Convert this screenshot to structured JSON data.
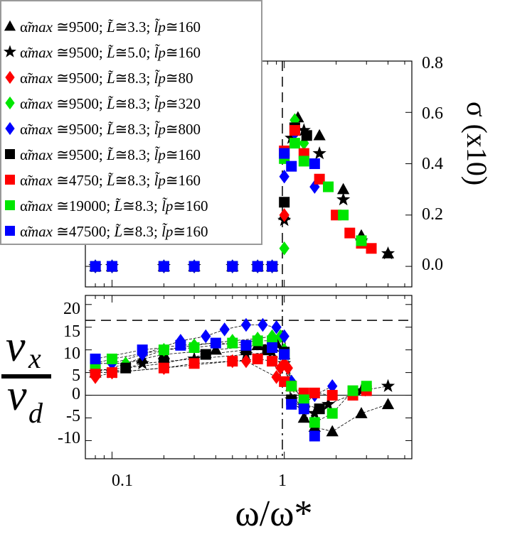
{
  "chart_data": [
    {
      "panel": "top",
      "type": "scatter",
      "xscale": "log",
      "xlim": [
        0.07,
        5.5
      ],
      "ylim": [
        -0.08,
        0.8
      ],
      "ylabel": "σ (x10)",
      "yticks": [
        "0.8",
        "0.6",
        "0.4",
        "0.2",
        "0.0"
      ],
      "ytick_values": [
        0.8,
        0.6,
        0.4,
        0.2,
        0.0
      ],
      "series": [
        {
          "name": "black-triangle",
          "x": [
            0.08,
            0.1,
            0.2,
            0.3,
            0.5,
            0.7,
            0.85,
            1.0,
            1.2,
            1.6,
            2.2,
            2.8,
            4.0
          ],
          "y": [
            0,
            0,
            0,
            0,
            0,
            0,
            0,
            0.2,
            0.58,
            0.51,
            0.3,
            0.12,
            0.05
          ]
        },
        {
          "name": "black-star",
          "x": [
            0.08,
            0.1,
            0.2,
            0.3,
            0.5,
            0.7,
            0.85,
            1.0,
            1.1,
            1.3,
            1.6,
            2.2,
            2.8,
            4.0
          ],
          "y": [
            0,
            0,
            0,
            0,
            0,
            0,
            0,
            0.18,
            0.5,
            0.53,
            0.44,
            0.26,
            0.1,
            0.05
          ]
        },
        {
          "name": "red-diamond",
          "x": [
            0.08,
            0.1,
            0.2,
            0.3,
            0.5,
            0.7,
            0.85,
            1.0,
            1.15,
            1.3
          ],
          "y": [
            0,
            0,
            0,
            0,
            0,
            0,
            0,
            0.2,
            0.52,
            0.44
          ]
        },
        {
          "name": "green-diamond",
          "x": [
            0.08,
            0.1,
            0.2,
            0.3,
            0.5,
            0.7,
            0.85,
            1.0,
            1.15,
            1.3
          ],
          "y": [
            0,
            0,
            0,
            0,
            0,
            0,
            0,
            0.07,
            0.57,
            0.48
          ]
        },
        {
          "name": "blue-diamond",
          "x": [
            0.08,
            0.1,
            0.2,
            0.3,
            0.5,
            0.7,
            0.85,
            1.0,
            1.15,
            1.5
          ],
          "y": [
            0,
            0,
            0,
            0,
            0,
            0,
            0,
            0.35,
            0.52,
            0.31
          ]
        },
        {
          "name": "black-square",
          "x": [
            0.08,
            0.1,
            0.2,
            0.3,
            0.5,
            0.7,
            0.85,
            1.0,
            1.15,
            1.35
          ],
          "y": [
            0,
            0,
            0,
            0,
            0,
            0,
            0,
            0.25,
            0.54,
            0.51
          ]
        },
        {
          "name": "red-square",
          "x": [
            0.08,
            0.1,
            0.2,
            0.3,
            0.5,
            0.7,
            0.85,
            1.0,
            1.15,
            1.3,
            1.6,
            2.0,
            2.4,
            2.8,
            3.2
          ],
          "y": [
            0,
            0,
            0,
            0,
            0,
            0,
            0,
            0.45,
            0.53,
            0.44,
            0.34,
            0.2,
            0.13,
            0.09,
            0.07
          ]
        },
        {
          "name": "green-square",
          "x": [
            0.08,
            0.1,
            0.2,
            0.3,
            0.5,
            0.7,
            0.85,
            1.0,
            1.15,
            1.3,
            1.8,
            2.2,
            2.8
          ],
          "y": [
            0,
            0,
            0,
            0,
            0,
            0,
            0,
            0.42,
            0.48,
            0.41,
            0.31,
            0.2,
            0.1
          ]
        },
        {
          "name": "blue-square",
          "x": [
            0.08,
            0.1,
            0.2,
            0.3,
            0.5,
            0.7,
            0.85,
            1.0,
            1.1,
            1.5
          ],
          "y": [
            0,
            0,
            0,
            0,
            0,
            0,
            0,
            0.44,
            0.39,
            0.4
          ]
        }
      ]
    },
    {
      "panel": "bottom",
      "type": "line",
      "xscale": "log",
      "xlim": [
        0.07,
        5.5
      ],
      "ylim": [
        -14,
        22
      ],
      "xlabel": "ω/ω*",
      "ylabel": "vx / vd",
      "xticks": [
        "0.1",
        "1"
      ],
      "xtick_values": [
        0.1,
        1
      ],
      "yticks": [
        "20",
        "15",
        "10",
        "5",
        "0",
        "-5",
        "-10"
      ],
      "ytick_values": [
        20,
        15,
        10,
        5,
        0,
        -5,
        -10
      ],
      "hline_dashed": 16.5,
      "hline_zero": 0,
      "series": [
        {
          "name": "black-triangle",
          "x": [
            0.08,
            0.15,
            0.2,
            0.4,
            0.7,
            0.9,
            1.0,
            1.1,
            1.3,
            1.5,
            1.9,
            2.8,
            4.0
          ],
          "y": [
            5,
            8,
            9,
            10,
            11,
            11.5,
            9,
            2,
            -5,
            -7,
            -8,
            -4,
            -2
          ]
        },
        {
          "name": "black-star",
          "x": [
            0.08,
            0.1,
            0.15,
            0.3,
            0.6,
            0.85,
            1.0,
            1.1,
            1.3,
            1.5,
            1.8,
            2.8,
            4.0
          ],
          "y": [
            5,
            5,
            7,
            8,
            9,
            9.5,
            7,
            -1,
            -3,
            -4,
            -2,
            1,
            2
          ]
        },
        {
          "name": "red-diamond",
          "x": [
            0.08,
            0.1,
            0.2,
            0.5,
            0.6,
            0.9,
            0.95,
            1.0,
            1.05
          ],
          "y": [
            4,
            5,
            6,
            7.5,
            7.5,
            4,
            6,
            7,
            6
          ]
        },
        {
          "name": "green-diamond",
          "x": [
            0.08,
            0.12,
            0.2,
            0.3,
            0.5,
            0.7,
            0.85,
            0.95,
            1.0,
            1.1
          ],
          "y": [
            7,
            7,
            10,
            11,
            12,
            12.5,
            13,
            13,
            10,
            3
          ]
        },
        {
          "name": "blue-diamond",
          "x": [
            0.1,
            0.15,
            0.25,
            0.35,
            0.45,
            0.6,
            0.75,
            0.9,
            1.0,
            1.1,
            1.3,
            1.5,
            1.9
          ],
          "y": [
            7,
            9,
            12,
            13,
            14.5,
            15.5,
            15.5,
            15,
            13,
            3,
            -2,
            0,
            2
          ]
        },
        {
          "name": "black-square",
          "x": [
            0.08,
            0.12,
            0.2,
            0.35,
            0.6,
            0.8,
            1.0,
            1.1,
            1.3,
            1.6
          ],
          "y": [
            5.5,
            6,
            7,
            9,
            10,
            10,
            9.5,
            -1,
            -2,
            -3
          ]
        },
        {
          "name": "red-square",
          "x": [
            0.08,
            0.1,
            0.2,
            0.3,
            0.5,
            0.7,
            0.85,
            1.0,
            1.1,
            1.3,
            1.5,
            1.9,
            2.5,
            3.0
          ],
          "y": [
            5,
            5,
            6,
            7,
            7.5,
            8,
            7.5,
            3,
            2,
            0.5,
            0.5,
            0,
            0,
            1
          ]
        },
        {
          "name": "green-square",
          "x": [
            0.08,
            0.1,
            0.2,
            0.3,
            0.5,
            0.7,
            0.85,
            1.0,
            1.1,
            1.3,
            1.5,
            1.9,
            2.5,
            3.0
          ],
          "y": [
            7,
            8,
            10,
            10.5,
            11.5,
            12,
            12,
            9,
            2,
            -1,
            -6,
            -4,
            1,
            2
          ]
        },
        {
          "name": "blue-square",
          "x": [
            0.08,
            0.15,
            0.25,
            0.4,
            0.6,
            0.85,
            1.0,
            1.1,
            1.3,
            1.5
          ],
          "y": [
            8,
            10,
            11,
            11.5,
            11,
            10.5,
            9,
            -2,
            -3,
            -9
          ]
        }
      ]
    }
  ],
  "legend": {
    "items": [
      {
        "marker": "triangle",
        "color": "#000000",
        "alpha": "9500",
        "L": "3.3",
        "lp": "160"
      },
      {
        "marker": "star",
        "color": "#000000",
        "alpha": "9500",
        "L": "5.0",
        "lp": "160"
      },
      {
        "marker": "diamond",
        "color": "#ff0000",
        "alpha": "9500",
        "L": "8.3",
        "lp": "80"
      },
      {
        "marker": "diamond",
        "color": "#00e600",
        "alpha": "9500",
        "L": "8.3",
        "lp": "320"
      },
      {
        "marker": "diamond",
        "color": "#0000ff",
        "alpha": "9500",
        "L": "8.3",
        "lp": "800"
      },
      {
        "marker": "square",
        "color": "#000000",
        "alpha": "9500",
        "L": "8.3",
        "lp": "160"
      },
      {
        "marker": "square",
        "color": "#ff0000",
        "alpha": "4750",
        "L": "8.3",
        "lp": "160"
      },
      {
        "marker": "square",
        "color": "#00e600",
        "alpha": "19000",
        "L": "8.3",
        "lp": "160"
      },
      {
        "marker": "square",
        "color": "#0000ff",
        "alpha": "47500",
        "L": "8.3",
        "lp": "160"
      }
    ],
    "alpha_symbol": "α̃",
    "alpha_sub": "max",
    "approx": "≅",
    "L_symbol": "L̃",
    "lp_symbol": "l̃p",
    "sep": ";"
  },
  "colors": {
    "black": "#000000",
    "red": "#ff0000",
    "green": "#00e600",
    "blue": "#0000ff"
  }
}
